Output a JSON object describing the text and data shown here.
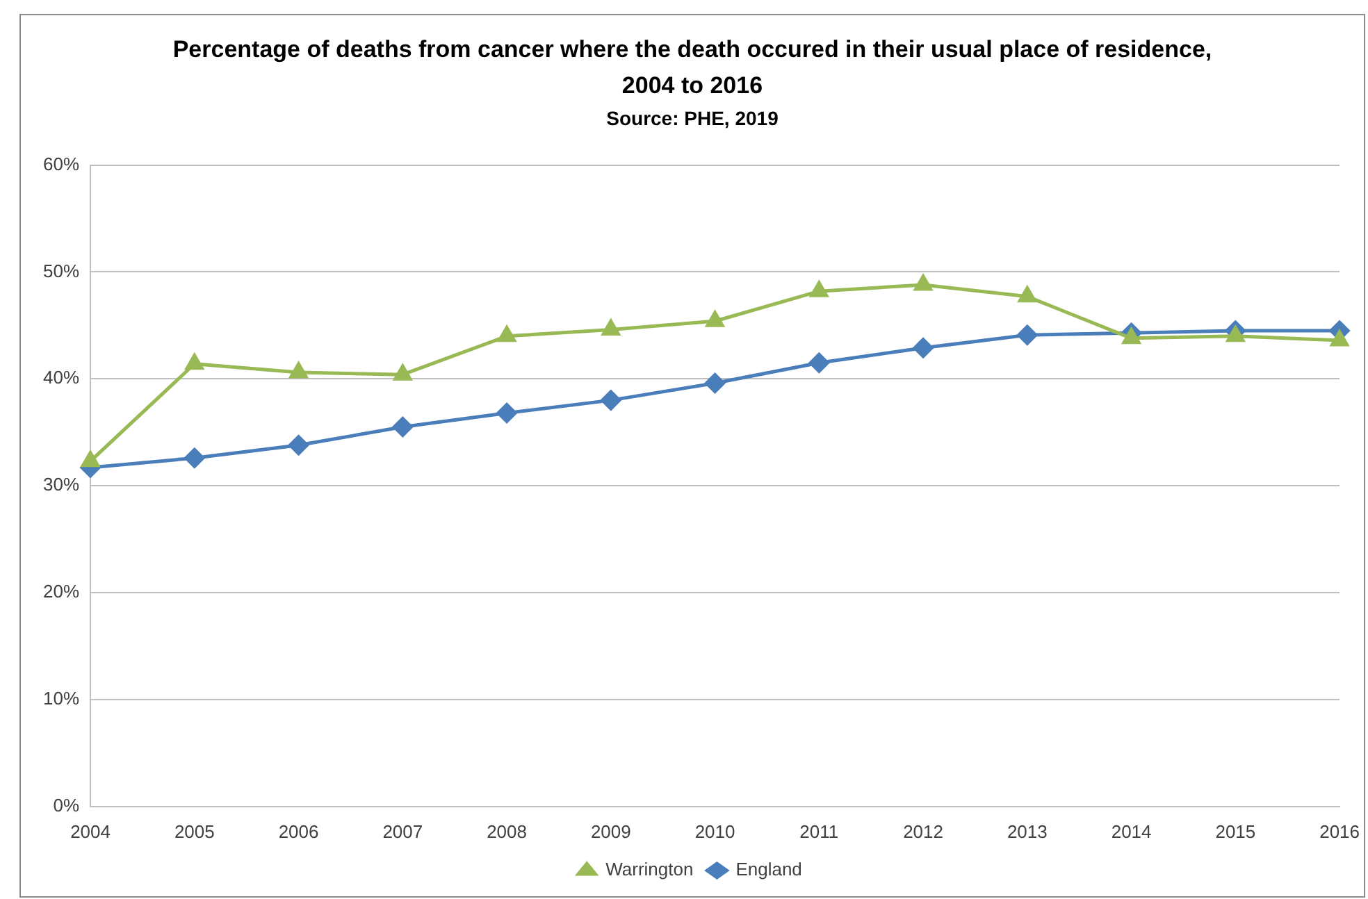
{
  "chart_data": {
    "type": "line",
    "title": "Percentage of deaths from cancer where the death occured in their usual place of residence, 2004 to 2016",
    "subtitle": "Source: PHE, 2019",
    "categories": [
      "2004",
      "2005",
      "2006",
      "2007",
      "2008",
      "2009",
      "2010",
      "2011",
      "2012",
      "2013",
      "2014",
      "2015",
      "2016"
    ],
    "series": [
      {
        "name": "England",
        "color": "#4a7ebb",
        "marker": "diamond",
        "values": [
          31.7,
          32.6,
          33.8,
          35.5,
          36.8,
          38.0,
          39.6,
          41.5,
          42.9,
          44.1,
          44.3,
          44.5,
          44.5
        ]
      },
      {
        "name": "Warrington",
        "color": "#98b954",
        "marker": "triangle",
        "values": [
          32.3,
          41.4,
          40.6,
          40.4,
          44.0,
          44.6,
          45.4,
          48.2,
          48.8,
          47.7,
          43.8,
          44.0,
          43.6
        ]
      }
    ],
    "ylim": [
      0,
      60
    ],
    "yticks": [
      {
        "value": 0,
        "label": "0%"
      },
      {
        "value": 10,
        "label": "10%"
      },
      {
        "value": 20,
        "label": "20%"
      },
      {
        "value": 30,
        "label": "30%"
      },
      {
        "value": 40,
        "label": "40%"
      },
      {
        "value": 50,
        "label": "50%"
      },
      {
        "value": 60,
        "label": "60%"
      }
    ],
    "grid": "y",
    "legend": "bottom",
    "line_style": "solid"
  }
}
